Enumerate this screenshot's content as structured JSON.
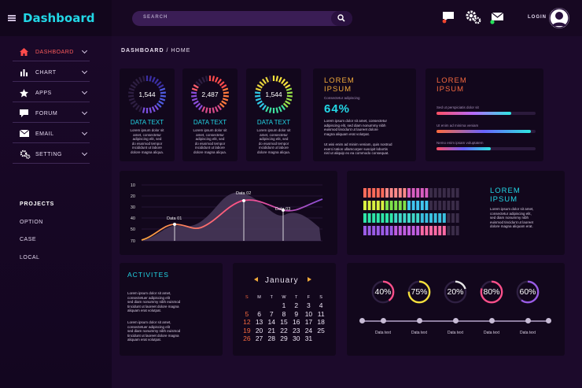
{
  "header": {
    "brand": "Dashboard",
    "search_placeholder": "SEARCH",
    "login_label": "LOGIN",
    "icons": [
      "chat-icon",
      "gear-icon",
      "mail-icon",
      "avatar-icon"
    ]
  },
  "sidebar": {
    "items": [
      {
        "label": "DASHBOARD",
        "icon": "home-icon",
        "active": true
      },
      {
        "label": "CHART",
        "icon": "bar-chart-icon"
      },
      {
        "label": "APPS",
        "icon": "star-icon"
      },
      {
        "label": "FORUM",
        "icon": "speech-bubble-icon"
      },
      {
        "label": "EMAIL",
        "icon": "envelope-icon"
      },
      {
        "label": "SETTING",
        "icon": "gears-icon"
      }
    ],
    "projects_heading": "PROJECTS",
    "projects": [
      "OPTION",
      "CASE",
      "LOCAL"
    ]
  },
  "breadcrumb": {
    "section": "DASHBOARD",
    "separator": "/",
    "page": "HOME"
  },
  "donut_cards": [
    {
      "value": "1,544",
      "title": "DATA TEXT",
      "fill": 0.55
    },
    {
      "value": "2,487",
      "title": "DATA TEXT",
      "fill": 0.85
    },
    {
      "value": "1,544",
      "title": "DATA TEXT",
      "fill": 0.95
    }
  ],
  "lorem_card_1": {
    "title_line1": "LOREM",
    "title_line2": "IPSUM",
    "subtitle": "Consectetur adipiscing",
    "percent": "64%"
  },
  "lorem_card_2": {
    "title_line1": "LOREM",
    "title_line2": "IPSUM",
    "labels": [
      "Sed ut perspiciatis dolor sit",
      "Ut enim ad minima veniam",
      "Nemo enim ipsam voluptatem"
    ],
    "progress": [
      0.75,
      0.95,
      0.55
    ]
  },
  "line_chart": {
    "y_ticks": [
      "10",
      "20",
      "30",
      "40",
      "50",
      "70"
    ],
    "annotations": [
      "Data 01",
      "Data 02",
      "Data 03"
    ]
  },
  "stacked_bars": {
    "title_line1": "LOREM",
    "title_line2": "IPSUM",
    "fills": [
      0.68,
      0.68,
      0.82,
      0.82
    ]
  },
  "activities": {
    "title": "ACTIVITES"
  },
  "calendar": {
    "month": "January",
    "days_of_week": [
      "S",
      "M",
      "T",
      "W",
      "T",
      "F",
      "S"
    ],
    "weeks": [
      [
        "",
        "",
        "",
        "1",
        "2",
        "3",
        "4"
      ],
      [
        "5",
        "6",
        "7",
        "8",
        "9",
        "10",
        "11"
      ],
      [
        "12",
        "13",
        "14",
        "15",
        "16",
        "17",
        "18"
      ],
      [
        "19",
        "20",
        "21",
        "22",
        "23",
        "24",
        "25"
      ],
      [
        "26",
        "27",
        "28",
        "29",
        "30",
        "31",
        ""
      ]
    ]
  },
  "gauges": [
    {
      "value": "40%",
      "fill": 0.4,
      "label": "Data text"
    },
    {
      "value": "75%",
      "fill": 0.75,
      "label": "Data text"
    },
    {
      "value": "20%",
      "fill": 0.2,
      "label": "Data text"
    },
    {
      "value": "80%",
      "fill": 0.8,
      "label": "Data text"
    },
    {
      "value": "60%",
      "fill": 0.6,
      "label": "Data text"
    }
  ],
  "colors": {
    "accent_cyan": "#22d7e6",
    "accent_orange": "#f0a93a",
    "accent_red": "#f3683f",
    "accent_pink": "#ff4f8a"
  }
}
